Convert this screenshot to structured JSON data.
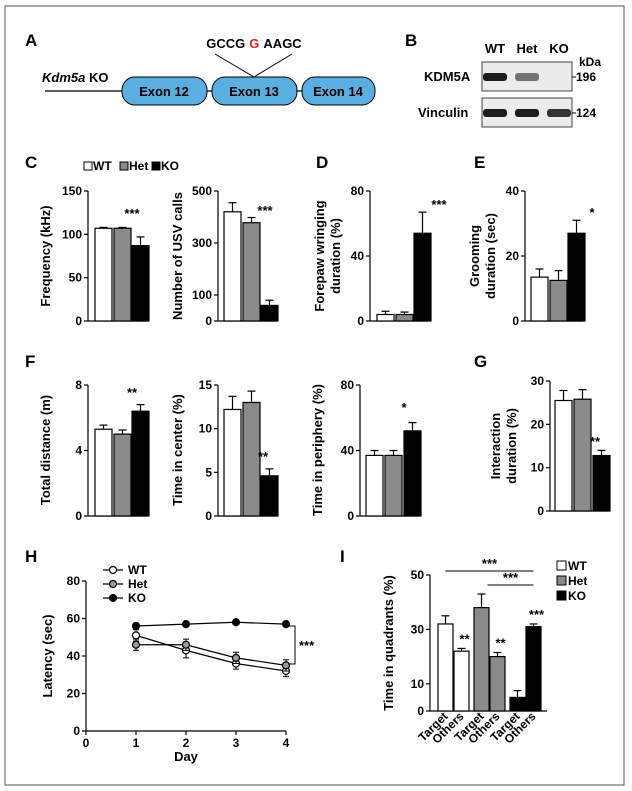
{
  "figure": {
    "colors": {
      "wt": "#ffffff",
      "het": "#8a8a8a",
      "ko": "#000000",
      "exon": "#5aaee0",
      "mutation": "#d8262f"
    },
    "panel_labels": {
      "A": "A",
      "B": "B",
      "C": "C",
      "D": "D",
      "E": "E",
      "F": "F",
      "G": "G",
      "H": "H",
      "I": "I"
    },
    "panel_a": {
      "construct": "Kdm5a KO",
      "construct_italic": "Kdm5a",
      "construct_suffix": " KO",
      "exons": [
        "Exon 12",
        "Exon 13",
        "Exon 14"
      ],
      "seq_left": "GCCG",
      "seq_mut": "G",
      "seq_right": "AAGC"
    },
    "panel_b": {
      "lanes": [
        "WT",
        "Het",
        "KO"
      ],
      "unit": "kDa",
      "blots": [
        {
          "name": "KDM5A",
          "mw": "196",
          "intensity": [
            1.0,
            0.45,
            0.0
          ]
        },
        {
          "name": "Vinculin",
          "mw": "124",
          "intensity": [
            1.0,
            1.0,
            0.85
          ]
        }
      ]
    },
    "legend_c": {
      "items": [
        "WT",
        "Het",
        "KO"
      ]
    },
    "legend_i": {
      "items": [
        "WT",
        "Het",
        "KO"
      ]
    }
  },
  "chart_data": [
    {
      "id": "C1",
      "type": "bar",
      "categories": [
        "WT",
        "Het",
        "KO"
      ],
      "values": [
        107,
        107,
        87
      ],
      "errors": [
        1,
        1,
        10
      ],
      "ylabel": "Frequency (kHz)",
      "ylim": [
        0,
        150
      ],
      "yticks": [
        0,
        50,
        100,
        150
      ],
      "significance": "***"
    },
    {
      "id": "C2",
      "type": "bar",
      "categories": [
        "WT",
        "Het",
        "KO"
      ],
      "values": [
        420,
        378,
        60
      ],
      "errors": [
        35,
        20,
        20
      ],
      "ylabel": "Number of USV calls",
      "ylim": [
        0,
        500
      ],
      "yticks": [
        0,
        100,
        300,
        500
      ],
      "significance": "***"
    },
    {
      "id": "D",
      "type": "bar",
      "categories": [
        "WT",
        "Het",
        "KO"
      ],
      "values": [
        4,
        4,
        54
      ],
      "errors": [
        2,
        1.5,
        13
      ],
      "ylabel": "Forepaw wringing duration (%)",
      "ylabel_lines": [
        "Forepaw wringing",
        "duration (%)"
      ],
      "ylim": [
        0,
        80
      ],
      "yticks": [
        0,
        40,
        80
      ],
      "significance": "***"
    },
    {
      "id": "E",
      "type": "bar",
      "categories": [
        "WT",
        "Het",
        "KO"
      ],
      "values": [
        13.5,
        12.5,
        27
      ],
      "errors": [
        2.5,
        3,
        4
      ],
      "ylabel": "Grooming duration (sec)",
      "ylabel_lines": [
        "Grooming",
        "duration (sec)"
      ],
      "ylim": [
        0,
        40
      ],
      "yticks": [
        0,
        20,
        40
      ],
      "significance": "*"
    },
    {
      "id": "F1",
      "type": "bar",
      "categories": [
        "WT",
        "Het",
        "KO"
      ],
      "values": [
        5.3,
        5.0,
        6.4
      ],
      "errors": [
        0.25,
        0.25,
        0.4
      ],
      "ylabel": "Total distance (m)",
      "ylim": [
        0,
        8
      ],
      "yticks": [
        0,
        4,
        8
      ],
      "significance": "**"
    },
    {
      "id": "F2",
      "type": "bar",
      "categories": [
        "WT",
        "Het",
        "KO"
      ],
      "values": [
        12.2,
        13.0,
        4.6
      ],
      "errors": [
        1.5,
        1.3,
        0.8
      ],
      "ylabel": "Time in center (%)",
      "ylim": [
        0,
        15
      ],
      "yticks": [
        0,
        5,
        10,
        15
      ],
      "significance": "**"
    },
    {
      "id": "F3",
      "type": "bar",
      "categories": [
        "WT",
        "Het",
        "KO"
      ],
      "values": [
        37,
        37,
        52
      ],
      "errors": [
        3,
        3,
        5
      ],
      "ylabel": "Time in periphery (%)",
      "ylim": [
        0,
        80
      ],
      "yticks": [
        0,
        40,
        80
      ],
      "significance": "*"
    },
    {
      "id": "G",
      "type": "bar",
      "categories": [
        "WT",
        "Het",
        "KO"
      ],
      "values": [
        25.5,
        25.8,
        12.8
      ],
      "errors": [
        2.3,
        2.2,
        1.2
      ],
      "ylabel": "Interaction duration (%)",
      "ylabel_lines": [
        "Interaction",
        "duration (%)"
      ],
      "ylim": [
        0,
        30
      ],
      "yticks": [
        0,
        10,
        20,
        30
      ],
      "significance": "**"
    },
    {
      "id": "H",
      "type": "line",
      "x": [
        1,
        2,
        3,
        4
      ],
      "xlabel": "Day",
      "ylabel": "Latency (sec)",
      "xlim": [
        0,
        4
      ],
      "ylim": [
        0,
        80
      ],
      "xticks": [
        0,
        1,
        2,
        3,
        4
      ],
      "yticks": [
        0,
        20,
        40,
        60,
        80
      ],
      "series": [
        {
          "name": "WT",
          "values": [
            51,
            43,
            36,
            32
          ],
          "errors": [
            3,
            4,
            3,
            3
          ]
        },
        {
          "name": "Het",
          "values": [
            46,
            46,
            39,
            35
          ],
          "errors": [
            3,
            3,
            3,
            3
          ]
        },
        {
          "name": "KO",
          "values": [
            56,
            57,
            58,
            57
          ],
          "errors": [
            1.5,
            1,
            1,
            1
          ]
        }
      ],
      "significance": "***"
    },
    {
      "id": "I",
      "type": "bar",
      "categories": [
        "Target",
        "Others",
        "Target",
        "Others",
        "Target",
        "Others"
      ],
      "groups": [
        "WT",
        "WT",
        "Het",
        "Het",
        "KO",
        "KO"
      ],
      "values": [
        32,
        22,
        38,
        20,
        5,
        31
      ],
      "errors": [
        3,
        1,
        5,
        1.5,
        2.5,
        1
      ],
      "ylabel": "Time in quadrants (%)",
      "ylim": [
        0,
        50
      ],
      "yticks": [
        0,
        10,
        30,
        50
      ],
      "significance": [
        "",
        "**",
        "",
        "**",
        "",
        "***"
      ],
      "comparison_marks": [
        "***",
        "***"
      ]
    }
  ]
}
